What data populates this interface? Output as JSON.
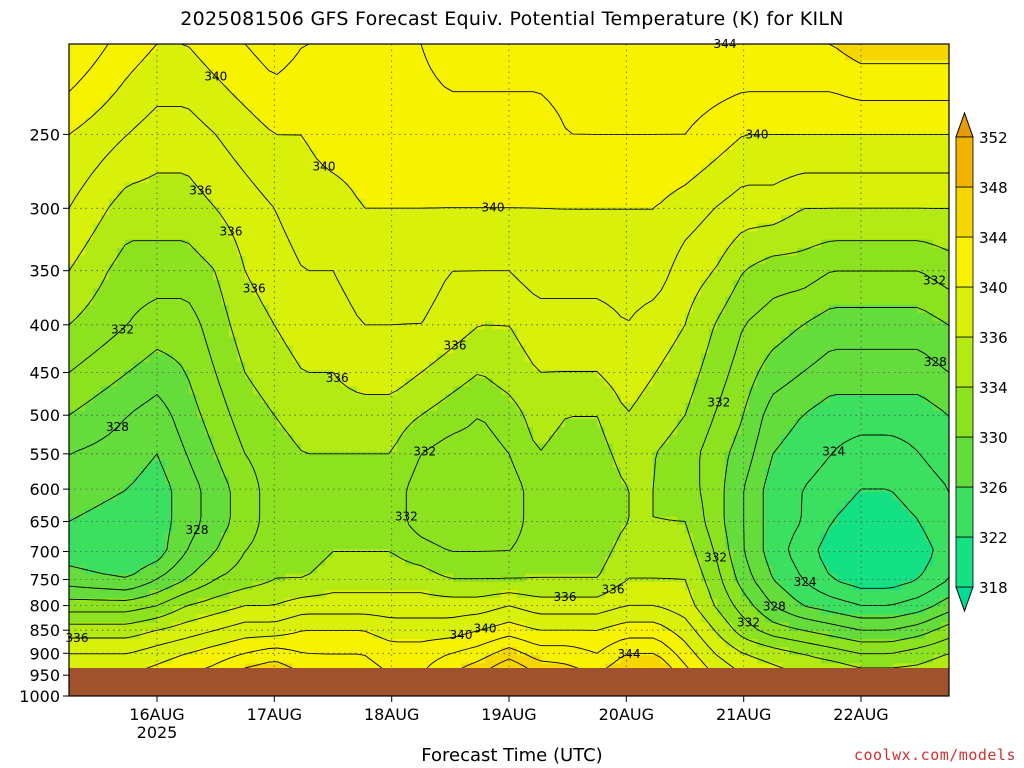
{
  "chart_data": {
    "type": "heatmap",
    "title": "2025081506 GFS Forecast Equiv. Potential Temperature (K) for KILN",
    "xlabel": "Forecast Time (UTC)",
    "ylabel": "",
    "credit": "coolwx.com/models",
    "x_ticks": [
      {
        "label": "16AUG",
        "sublabel": "2025",
        "hours": 18
      },
      {
        "label": "17AUG",
        "sublabel": "",
        "hours": 42
      },
      {
        "label": "18AUG",
        "sublabel": "",
        "hours": 66
      },
      {
        "label": "19AUG",
        "sublabel": "",
        "hours": 90
      },
      {
        "label": "20AUG",
        "sublabel": "",
        "hours": 114
      },
      {
        "label": "21AUG",
        "sublabel": "",
        "hours": 138
      },
      {
        "label": "22AUG",
        "sublabel": "",
        "hours": 162
      }
    ],
    "x_range_hours": [
      0,
      180
    ],
    "y_axis": "pressure (hPa), log scale, inverted",
    "y_ticks": [
      250,
      300,
      350,
      400,
      450,
      500,
      550,
      600,
      650,
      700,
      750,
      800,
      850,
      900,
      950,
      1000
    ],
    "y_range": [
      200,
      1000
    ],
    "grid": true,
    "colorbar": {
      "levels": [
        318,
        322,
        326,
        330,
        334,
        336,
        340,
        344,
        348,
        352
      ],
      "colors": [
        "#00dc96",
        "#14e084",
        "#3ce060",
        "#64dc3c",
        "#8ce21e",
        "#b4ea14",
        "#d8f00a",
        "#f7f300",
        "#f5d600",
        "#f0b400",
        "#e89a00"
      ],
      "extend": "both",
      "placement": "right"
    },
    "ground_color": "#a0522d",
    "theta_e_field": {
      "pressures": [
        200,
        250,
        300,
        350,
        400,
        450,
        500,
        550,
        600,
        650,
        700,
        750,
        800,
        850,
        900,
        950,
        1000
      ],
      "times_hours": [
        0,
        12,
        18,
        24,
        30,
        36,
        42,
        48,
        54,
        60,
        66,
        72,
        78,
        84,
        90,
        96,
        102,
        108,
        114,
        120,
        126,
        132,
        138,
        144,
        150,
        156,
        162,
        168,
        174,
        180
      ],
      "values_K": [
        [
          344,
          341,
          340,
          340,
          341,
          342,
          343,
          342,
          342,
          342,
          342,
          342,
          343,
          343,
          343,
          343,
          343,
          344,
          344,
          344,
          344,
          344,
          344,
          344,
          344,
          344,
          345,
          345,
          345,
          345
        ],
        [
          340,
          338,
          337,
          337,
          338,
          339,
          340,
          340,
          341,
          341,
          341,
          341,
          341,
          341,
          341,
          341,
          342,
          342,
          342,
          342,
          342,
          341,
          340,
          340,
          340,
          340,
          340,
          340,
          340,
          340
        ],
        [
          338,
          335,
          335,
          335,
          336,
          337,
          338,
          339,
          339,
          340,
          340,
          340,
          340,
          340,
          340,
          340,
          340,
          340,
          340,
          340,
          339,
          338,
          337,
          337,
          336,
          336,
          336,
          336,
          336,
          336
        ],
        [
          336,
          333,
          333,
          333,
          334,
          336,
          337,
          338,
          338,
          339,
          339,
          339,
          338,
          338,
          338,
          339,
          339,
          339,
          339,
          339,
          337,
          336,
          334,
          333,
          333,
          332,
          332,
          332,
          332,
          333
        ],
        [
          334,
          332,
          331,
          331,
          333,
          335,
          336,
          337,
          337,
          338,
          338,
          338,
          337,
          336,
          336,
          337,
          337,
          337,
          338,
          337,
          336,
          334,
          332,
          331,
          330,
          329,
          329,
          329,
          329,
          330
        ],
        [
          332,
          330,
          329,
          330,
          332,
          334,
          335,
          336,
          336,
          337,
          337,
          336,
          335,
          334,
          335,
          336,
          336,
          336,
          337,
          336,
          335,
          333,
          331,
          329,
          328,
          327,
          327,
          327,
          327,
          328
        ],
        [
          330,
          328,
          327,
          329,
          331,
          333,
          334,
          335,
          335,
          335,
          335,
          334,
          333,
          332,
          333,
          335,
          334,
          334,
          336,
          335,
          334,
          332,
          330,
          327,
          326,
          325,
          325,
          325,
          325,
          326
        ],
        [
          328,
          327,
          326,
          328,
          330,
          332,
          333,
          334,
          334,
          334,
          334,
          332,
          331,
          331,
          332,
          334,
          333,
          333,
          335,
          334,
          333,
          331,
          329,
          326,
          325,
          324,
          323,
          323,
          324,
          325
        ],
        [
          327,
          326,
          325,
          327,
          329,
          331,
          333,
          333,
          333,
          333,
          333,
          331,
          330,
          330,
          331,
          333,
          332,
          332,
          334,
          334,
          333,
          331,
          328,
          325,
          324,
          323,
          322,
          322,
          323,
          324
        ],
        [
          326,
          325,
          325,
          327,
          329,
          331,
          333,
          333,
          333,
          333,
          333,
          331,
          330,
          330,
          331,
          333,
          332,
          332,
          334,
          334,
          334,
          331,
          328,
          325,
          324,
          322,
          321,
          321,
          322,
          324
        ],
        [
          325,
          324,
          325,
          328,
          330,
          332,
          333,
          333,
          334,
          334,
          334,
          333,
          332,
          332,
          332,
          333,
          333,
          333,
          335,
          335,
          335,
          332,
          328,
          325,
          323,
          321,
          320,
          320,
          321,
          323
        ],
        [
          327,
          326,
          328,
          330,
          332,
          333,
          334,
          334,
          335,
          335,
          335,
          335,
          334,
          334,
          334,
          334,
          334,
          334,
          336,
          336,
          336,
          333,
          329,
          326,
          324,
          322,
          321,
          321,
          322,
          324
        ],
        [
          331,
          331,
          332,
          334,
          335,
          336,
          336,
          337,
          337,
          337,
          337,
          337,
          337,
          337,
          338,
          337,
          337,
          337,
          338,
          338,
          337,
          334,
          331,
          328,
          326,
          325,
          324,
          324,
          325,
          327
        ],
        [
          335,
          335,
          336,
          337,
          338,
          339,
          339,
          340,
          340,
          340,
          339,
          339,
          339,
          340,
          341,
          340,
          340,
          340,
          341,
          341,
          339,
          336,
          333,
          331,
          330,
          329,
          328,
          328,
          329,
          331
        ],
        [
          338,
          338,
          339,
          340,
          341,
          342,
          343,
          342,
          342,
          342,
          341,
          341,
          342,
          343,
          345,
          343,
          343,
          342,
          344,
          344,
          341,
          338,
          336,
          335,
          334,
          333,
          332,
          332,
          333,
          334
        ],
        [
          340,
          340,
          341,
          342,
          343,
          345,
          346,
          344,
          343,
          343,
          342,
          342,
          344,
          346,
          349,
          346,
          345,
          344,
          346,
          347,
          343,
          340,
          338,
          337,
          336,
          336,
          335,
          335,
          335,
          336
        ],
        [
          340,
          340,
          341,
          342,
          343,
          345,
          346,
          344,
          343,
          343,
          342,
          342,
          344,
          346,
          349,
          346,
          345,
          344,
          346,
          347,
          343,
          340,
          338,
          337,
          336,
          336,
          335,
          335,
          335,
          336
        ]
      ]
    }
  }
}
